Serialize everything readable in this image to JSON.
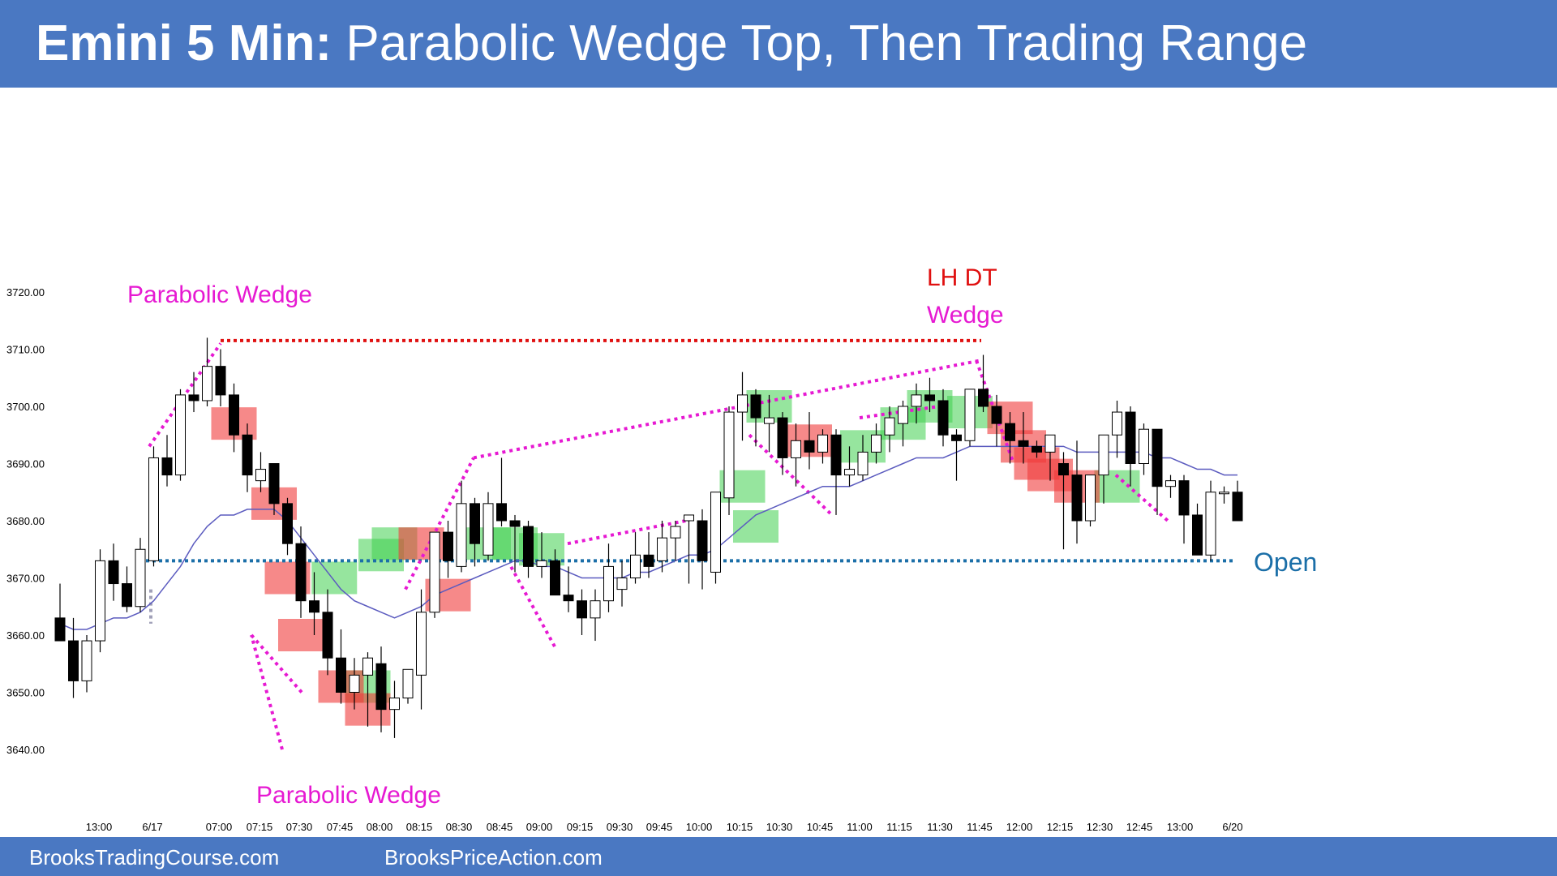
{
  "header": {
    "title_bold": "Emini 5 Min:",
    "title_rest": "Parabolic Wedge Top, Then Trading Range"
  },
  "footer": {
    "link1": "BrooksTradingCourse.com",
    "link2": "BrooksPriceAction.com"
  },
  "colors": {
    "header_bg": "#4a78c2",
    "bull_bar": "#ffffff",
    "bear_bar": "#000000",
    "ema": "#5b5bbf",
    "magenta": "#e619d2",
    "red_annotation": "#e01010",
    "open_line": "#1b6fa8",
    "green_zone": "#3fcf4f",
    "red_zone": "#f03a3a"
  },
  "chart_data": {
    "type": "candlestick",
    "title": "",
    "ylim": [
      3636,
      3731
    ],
    "y_ticks": [
      "3720.00",
      "3710.00",
      "3700.00",
      "3690.00",
      "3680.00",
      "3670.00",
      "3660.00",
      "3650.00",
      "3640.00"
    ],
    "x_ticks": [
      "13:00",
      "6/17",
      "07:00",
      "07:15",
      "07:30",
      "07:45",
      "08:00",
      "08:15",
      "08:30",
      "08:45",
      "09:00",
      "09:15",
      "09:30",
      "09:45",
      "10:00",
      "10:15",
      "10:30",
      "10:45",
      "11:00",
      "11:15",
      "11:30",
      "11:45",
      "12:00",
      "12:15",
      "12:30",
      "12:45",
      "13:00",
      "6/20"
    ],
    "bars": [
      [
        3663,
        3669,
        3659,
        3659
      ],
      [
        3659,
        3663,
        3649,
        3652
      ],
      [
        3652,
        3660,
        3650,
        3659
      ],
      [
        3659,
        3675,
        3657,
        3673
      ],
      [
        3673,
        3676,
        3666,
        3669
      ],
      [
        3669,
        3672,
        3664,
        3665
      ],
      [
        3665,
        3677,
        3664,
        3675
      ],
      [
        3673,
        3693,
        3672,
        3691
      ],
      [
        3691,
        3695,
        3686,
        3688
      ],
      [
        3688,
        3703,
        3687,
        3702
      ],
      [
        3702,
        3706,
        3699,
        3701
      ],
      [
        3701,
        3712,
        3700,
        3707
      ],
      [
        3707,
        3710,
        3700,
        3702
      ],
      [
        3702,
        3704,
        3692,
        3695
      ],
      [
        3695,
        3697,
        3685,
        3688
      ],
      [
        3687,
        3692,
        3685,
        3689
      ],
      [
        3690,
        3690,
        3681,
        3683
      ],
      [
        3683,
        3684,
        3674,
        3676
      ],
      [
        3676,
        3679,
        3663,
        3666
      ],
      [
        3666,
        3671,
        3660,
        3664
      ],
      [
        3664,
        3668,
        3653,
        3656
      ],
      [
        3656,
        3661,
        3648,
        3650
      ],
      [
        3650,
        3656,
        3647,
        3653
      ],
      [
        3653,
        3657,
        3644,
        3656
      ],
      [
        3655,
        3658,
        3643,
        3647
      ],
      [
        3647,
        3652,
        3642,
        3649
      ],
      [
        3649,
        3654,
        3648,
        3654
      ],
      [
        3653,
        3668,
        3647,
        3664
      ],
      [
        3664,
        3673,
        3663,
        3678
      ],
      [
        3678,
        3680,
        3670,
        3673
      ],
      [
        3672,
        3687,
        3671,
        3683
      ],
      [
        3683,
        3684,
        3672,
        3676
      ],
      [
        3674,
        3685,
        3673,
        3683
      ],
      [
        3683,
        3691,
        3679,
        3680
      ],
      [
        3680,
        3681,
        3671,
        3679
      ],
      [
        3679,
        3680,
        3670,
        3672
      ],
      [
        3672,
        3678,
        3670,
        3673
      ],
      [
        3673,
        3675,
        3668,
        3667
      ],
      [
        3667,
        3672,
        3664,
        3666
      ],
      [
        3666,
        3668,
        3660,
        3663
      ],
      [
        3663,
        3668,
        3659,
        3666
      ],
      [
        3666,
        3676,
        3664,
        3672
      ],
      [
        3668,
        3673,
        3665,
        3670
      ],
      [
        3670,
        3678,
        3669,
        3674
      ],
      [
        3674,
        3678,
        3670,
        3672
      ],
      [
        3673,
        3680,
        3671,
        3677
      ],
      [
        3677,
        3680,
        3673,
        3679
      ],
      [
        3680,
        3681,
        3669,
        3681
      ],
      [
        3680,
        3682,
        3668,
        3673
      ],
      [
        3671,
        3681,
        3669,
        3685
      ],
      [
        3684,
        3700,
        3681,
        3699
      ],
      [
        3699,
        3706,
        3694,
        3702
      ],
      [
        3702,
        3703,
        3693,
        3698
      ],
      [
        3697,
        3702,
        3692,
        3698
      ],
      [
        3698,
        3699,
        3688,
        3691
      ],
      [
        3691,
        3697,
        3686,
        3694
      ],
      [
        3694,
        3699,
        3689,
        3692
      ],
      [
        3692,
        3696,
        3690,
        3695
      ],
      [
        3695,
        3696,
        3681,
        3688
      ],
      [
        3688,
        3693,
        3686,
        3689
      ],
      [
        3688,
        3695,
        3687,
        3692
      ],
      [
        3692,
        3697,
        3690,
        3695
      ],
      [
        3695,
        3700,
        3692,
        3698
      ],
      [
        3697,
        3701,
        3693,
        3700
      ],
      [
        3700,
        3704,
        3697,
        3702
      ],
      [
        3702,
        3705,
        3699,
        3701
      ],
      [
        3701,
        3703,
        3693,
        3695
      ],
      [
        3695,
        3696,
        3687,
        3694
      ],
      [
        3694,
        3703,
        3693,
        3703
      ],
      [
        3703,
        3709,
        3699,
        3700
      ],
      [
        3700,
        3702,
        3693,
        3697
      ],
      [
        3697,
        3699,
        3690,
        3694
      ],
      [
        3694,
        3699,
        3690,
        3693
      ],
      [
        3693,
        3694,
        3691,
        3692
      ],
      [
        3692,
        3695,
        3687,
        3695
      ],
      [
        3690,
        3692,
        3675,
        3688
      ],
      [
        3688,
        3694,
        3676,
        3680
      ],
      [
        3680,
        3687,
        3679,
        3688
      ],
      [
        3688,
        3694,
        3683,
        3695
      ],
      [
        3695,
        3701,
        3691,
        3699
      ],
      [
        3699,
        3700,
        3686,
        3690
      ],
      [
        3690,
        3697,
        3688,
        3696
      ],
      [
        3696,
        3696,
        3681,
        3686
      ],
      [
        3686,
        3688,
        3684,
        3687
      ],
      [
        3687,
        3688,
        3676,
        3681
      ],
      [
        3681,
        3683,
        3674,
        3674
      ],
      [
        3674,
        3687,
        3673,
        3685
      ],
      [
        3685,
        3686,
        3683,
        3685
      ],
      [
        3685,
        3687,
        3680,
        3680
      ]
    ],
    "ema": [
      3662,
      3661,
      3661,
      3662,
      3663,
      3663,
      3664,
      3666,
      3669,
      3672,
      3676,
      3679,
      3681,
      3681,
      3682,
      3682,
      3682,
      3680,
      3677,
      3674,
      3671,
      3668,
      3666,
      3665,
      3664,
      3663,
      3664,
      3665,
      3667,
      3668,
      3669,
      3670,
      3671,
      3672,
      3673,
      3673,
      3672,
      3672,
      3671,
      3670,
      3670,
      3670,
      3670,
      3671,
      3671,
      3672,
      3673,
      3674,
      3674,
      3675,
      3677,
      3679,
      3681,
      3682,
      3683,
      3684,
      3685,
      3686,
      3686,
      3686,
      3687,
      3688,
      3689,
      3690,
      3691,
      3691,
      3691,
      3692,
      3693,
      3693,
      3693,
      3693,
      3693,
      3693,
      3693,
      3693,
      3692,
      3692,
      3692,
      3692,
      3692,
      3692,
      3691,
      3691,
      3690,
      3689,
      3689,
      3688,
      3688
    ],
    "open_level": 3673,
    "open_label": "Open",
    "annotations": {
      "parabolic_wedge_top": "Parabolic Wedge",
      "parabolic_wedge_bottom": "Parabolic Wedge",
      "lh_dt": "LH DT",
      "wedge": "Wedge"
    },
    "resistance_level": 3711.5
  }
}
